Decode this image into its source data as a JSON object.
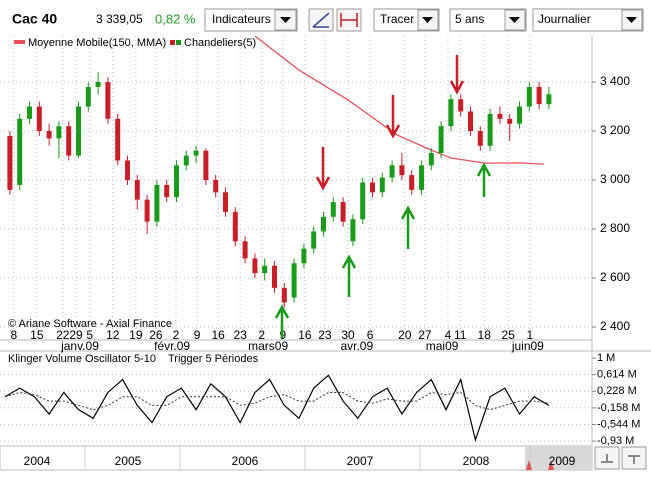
{
  "toolbar": {
    "indicators": "Indicateurs",
    "draw": "Tracer",
    "period": "5 ans",
    "interval": "Journalier"
  },
  "chart_data": [
    {
      "type": "candlestick",
      "title": "Cac 40",
      "last": "3 339,05",
      "change": "0,82 %",
      "note": "© Ariane Software - Axial Finance",
      "xlim": [
        0,
        120
      ],
      "ylim": [
        2347,
        3588
      ],
      "grid": true,
      "yticks": [
        {
          "value": 3400,
          "label": "3 400"
        },
        {
          "value": 3200,
          "label": "3 200"
        },
        {
          "value": 3000,
          "label": "3 000"
        },
        {
          "value": 2800,
          "label": "2 800"
        },
        {
          "value": 2600,
          "label": "2 600"
        },
        {
          "value": 2400,
          "label": "2 400"
        }
      ],
      "xticks": [
        {
          "value": 1.8,
          "label": "8"
        },
        {
          "value": 6.5,
          "label": "15"
        },
        {
          "value": 11.8,
          "label": "22"
        },
        {
          "value": 14.5,
          "label": "29"
        },
        {
          "value": 17.3,
          "label": "5"
        },
        {
          "value": 22,
          "label": "12"
        },
        {
          "value": 26.7,
          "label": "19"
        },
        {
          "value": 30.8,
          "label": "26"
        },
        {
          "value": 34.9,
          "label": "2"
        },
        {
          "value": 39.2,
          "label": "9"
        },
        {
          "value": 43.5,
          "label": "16"
        },
        {
          "value": 48,
          "label": "23"
        },
        {
          "value": 52.4,
          "label": "2"
        },
        {
          "value": 56.7,
          "label": "9"
        },
        {
          "value": 61.2,
          "label": "16"
        },
        {
          "value": 65.3,
          "label": "23"
        },
        {
          "value": 70,
          "label": "30"
        },
        {
          "value": 74.5,
          "label": "6"
        },
        {
          "value": 81.6,
          "label": "20"
        },
        {
          "value": 85.7,
          "label": "27"
        },
        {
          "value": 90.4,
          "label": "4"
        },
        {
          "value": 92.9,
          "label": "11"
        },
        {
          "value": 97.8,
          "label": "18"
        },
        {
          "value": 102.7,
          "label": "25"
        },
        {
          "value": 107.1,
          "label": "1"
        }
      ],
      "months": [
        {
          "value": 15.3,
          "label": "janv.09"
        },
        {
          "value": 34.1,
          "label": "févr.09"
        },
        {
          "value": 53.7,
          "label": "mars09"
        },
        {
          "value": 71.8,
          "label": "avr.09"
        },
        {
          "value": 89.2,
          "label": "mai09"
        },
        {
          "value": 106.7,
          "label": "juin09"
        }
      ],
      "series": [
        {
          "name": "Moyenne Mobile(150, MMA)",
          "type": "line",
          "color": "#e8505a",
          "x": [
            51,
            60,
            70,
            80,
            87,
            91,
            98,
            105,
            110
          ],
          "values": [
            3588,
            3449,
            3327,
            3184,
            3122,
            3090,
            3069,
            3070,
            3065
          ]
        },
        {
          "name": "Chandeliers(5)",
          "type": "candlestick",
          "up_color": "#1a9a1a",
          "down_color": "#c81e28",
          "x": [
            1,
            3,
            5,
            7,
            9,
            11,
            13,
            15,
            17,
            19,
            21,
            23,
            25,
            27,
            29,
            31,
            33,
            35,
            37,
            39,
            41,
            43,
            45,
            47,
            49,
            51,
            53,
            55,
            57,
            59,
            61,
            63,
            65,
            67,
            69,
            71,
            73,
            75,
            77,
            79,
            81,
            83,
            85,
            87,
            89,
            91,
            93,
            95,
            97,
            99,
            101,
            103,
            105,
            107,
            109,
            111
          ],
          "ohlc": [
            [
              3180,
              3200,
              2940,
              2960
            ],
            [
              2980,
              3270,
              2960,
              3250
            ],
            [
              3250,
              3320,
              3230,
              3300
            ],
            [
              3300,
              3320,
              3180,
              3200
            ],
            [
              3200,
              3230,
              3140,
              3170
            ],
            [
              3170,
              3240,
              3090,
              3220
            ],
            [
              3220,
              3240,
              3080,
              3100
            ],
            [
              3100,
              3320,
              3090,
              3300
            ],
            [
              3300,
              3400,
              3280,
              3380
            ],
            [
              3380,
              3440,
              3350,
              3400
            ],
            [
              3400,
              3420,
              3230,
              3250
            ],
            [
              3250,
              3270,
              3060,
              3080
            ],
            [
              3080,
              3100,
              2980,
              3000
            ],
            [
              3000,
              3020,
              2880,
              2920
            ],
            [
              2920,
              2940,
              2780,
              2830
            ],
            [
              2830,
              3000,
              2810,
              2980
            ],
            [
              2980,
              3000,
              2910,
              2930
            ],
            [
              2930,
              3080,
              2910,
              3060
            ],
            [
              3060,
              3120,
              3040,
              3100
            ],
            [
              3100,
              3140,
              3070,
              3120
            ],
            [
              3120,
              3130,
              2980,
              3000
            ],
            [
              3000,
              3020,
              2930,
              2950
            ],
            [
              2950,
              2970,
              2850,
              2870
            ],
            [
              2870,
              2890,
              2730,
              2750
            ],
            [
              2750,
              2770,
              2660,
              2680
            ],
            [
              2680,
              2700,
              2600,
              2620
            ],
            [
              2620,
              2680,
              2590,
              2650
            ],
            [
              2650,
              2670,
              2540,
              2560
            ],
            [
              2560,
              2580,
              2480,
              2500
            ],
            [
              2520,
              2680,
              2500,
              2660
            ],
            [
              2660,
              2740,
              2640,
              2720
            ],
            [
              2720,
              2810,
              2700,
              2790
            ],
            [
              2790,
              2870,
              2770,
              2850
            ],
            [
              2850,
              2930,
              2830,
              2910
            ],
            [
              2910,
              2930,
              2810,
              2830
            ],
            [
              2750,
              2860,
              2730,
              2840
            ],
            [
              2840,
              3010,
              2820,
              2990
            ],
            [
              2990,
              3010,
              2930,
              2950
            ],
            [
              2950,
              3030,
              2930,
              3010
            ],
            [
              3010,
              3080,
              2990,
              3060
            ],
            [
              3060,
              3110,
              3000,
              3020
            ],
            [
              3020,
              3040,
              2940,
              2960
            ],
            [
              2960,
              3080,
              2940,
              3060
            ],
            [
              3060,
              3130,
              3040,
              3110
            ],
            [
              3110,
              3240,
              3090,
              3220
            ],
            [
              3220,
              3350,
              3200,
              3330
            ],
            [
              3330,
              3350,
              3260,
              3280
            ],
            [
              3280,
              3300,
              3180,
              3200
            ],
            [
              3200,
              3220,
              3120,
              3140
            ],
            [
              3140,
              3290,
              3120,
              3270
            ],
            [
              3270,
              3300,
              3230,
              3250
            ],
            [
              3250,
              3270,
              3160,
              3230
            ],
            [
              3230,
              3320,
              3210,
              3300
            ],
            [
              3300,
              3400,
              3280,
              3380
            ],
            [
              3380,
              3400,
              3290,
              3310
            ],
            [
              3310,
              3380,
              3290,
              3350
            ]
          ]
        }
      ]
    },
    {
      "type": "line",
      "title": "Klinger Volume Oscillator 5-10",
      "subtitle": "Trigger 5 Périodes",
      "xlim": [
        0,
        120
      ],
      "ylim": [
        -1.02,
        1.14
      ],
      "grid": true,
      "yticks": [
        {
          "value": 1,
          "label": "1 M"
        },
        {
          "value": 0.614,
          "label": "0,614 M"
        },
        {
          "value": 0.228,
          "label": "0,228 M"
        },
        {
          "value": -0.158,
          "label": "-0,158 M"
        },
        {
          "value": -0.544,
          "label": "-0,544 M"
        },
        {
          "value": -0.93,
          "label": "-0,93 M"
        }
      ],
      "x": [
        0,
        3,
        6,
        9,
        12,
        15,
        18,
        21,
        24,
        27,
        30,
        33,
        36,
        39,
        42,
        45,
        48,
        51,
        54,
        57,
        60,
        63,
        66,
        69,
        72,
        75,
        78,
        81,
        84,
        87,
        90,
        93,
        96,
        99,
        102,
        105,
        108,
        111
      ],
      "series": [
        {
          "name": "Klinger Volume Oscillator 5-10",
          "color": "#000000",
          "dash": false,
          "values": [
            0.1,
            0.3,
            0.1,
            -0.3,
            0.2,
            -0.2,
            -0.4,
            0.2,
            0.5,
            -0.1,
            -0.5,
            0.1,
            0.3,
            -0.2,
            0.4,
            0.1,
            -0.5,
            0.2,
            0.5,
            -0.1,
            -0.4,
            0.3,
            0.6,
            0.0,
            -0.4,
            0.1,
            0.3,
            -0.3,
            0.2,
            0.5,
            -0.2,
            0.5,
            -0.9,
            0.1,
            0.3,
            -0.3,
            0.1,
            -0.1
          ]
        },
        {
          "name": "Trigger 5 Périodes",
          "color": "#333333",
          "dash": true,
          "values": [
            0.1,
            0.2,
            0.15,
            0,
            0,
            -0.1,
            -0.2,
            -0.1,
            0.1,
            0.1,
            -0.1,
            -0.1,
            0.1,
            0.1,
            0.1,
            0.1,
            -0.1,
            -0.05,
            0.1,
            0.15,
            0,
            0,
            0.2,
            0.2,
            0,
            -0.05,
            0.05,
            0,
            0,
            0.2,
            0.15,
            0.2,
            -0.1,
            -0.2,
            -0.1,
            0,
            0,
            -0.05
          ]
        }
      ]
    }
  ],
  "navigator": {
    "years": [
      "2004",
      "2005",
      "2006",
      "2007",
      "2008",
      "2009"
    ]
  }
}
